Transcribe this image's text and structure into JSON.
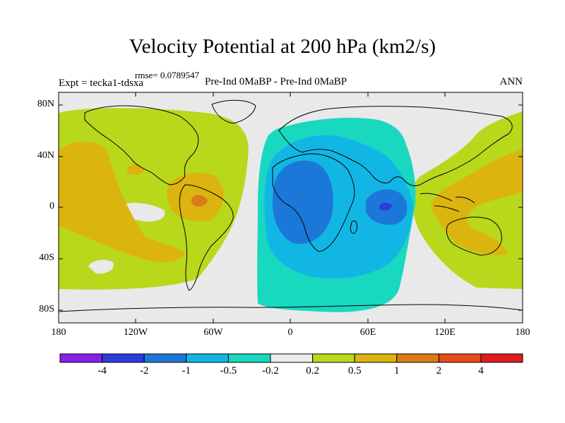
{
  "plot": {
    "title": "Velocity Potential at 200 hPa (km2/s)",
    "rmse": "rmse= 0.0789547",
    "experiment": "Expt = tecka1-tdsxa",
    "comparison": "Pre-Ind 0MaBP - Pre-Ind    0MaBP",
    "season": "ANN"
  },
  "axes": {
    "lat_labels": [
      "80N",
      "40N",
      "0",
      "40S",
      "80S"
    ],
    "lon_labels": [
      "180",
      "120W",
      "60W",
      "0",
      "60E",
      "120E",
      "180"
    ]
  },
  "colorbar": {
    "labels": [
      "-4",
      "-2",
      "-1",
      "-0.5",
      "-0.2",
      "0.2",
      "0.5",
      "1",
      "2",
      "4"
    ],
    "colors": [
      "#8a1fe6",
      "#2e3cdc",
      "#1c78d8",
      "#12b6e4",
      "#18d8c0",
      "#ebebeb",
      "#b8d81c",
      "#dcb410",
      "#dc7c18",
      "#e84a1a",
      "#e01c1c"
    ]
  },
  "colors": {
    "background_neutral": "#e9e9e9",
    "coastline": "#000000"
  }
}
